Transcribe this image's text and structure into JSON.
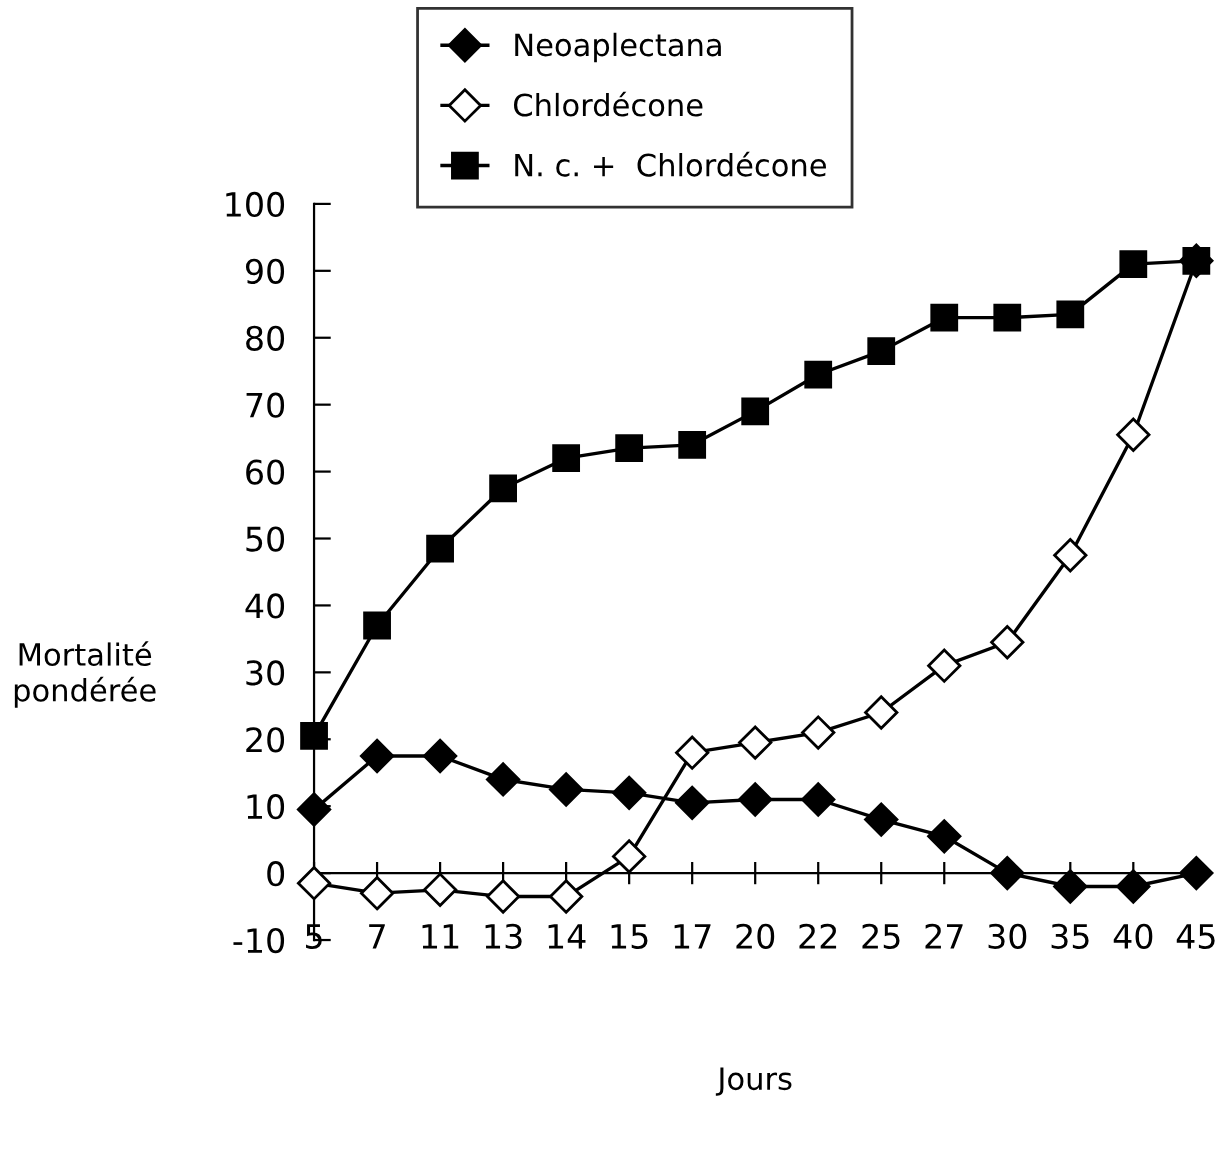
{
  "chart_data": {
    "type": "line",
    "xlabel": "Jours",
    "ylabel": "Mortalité\npondérée",
    "categories": [
      "5",
      "7",
      "11",
      "13",
      "14",
      "15",
      "17",
      "20",
      "22",
      "25",
      "27",
      "30",
      "35",
      "40",
      "45"
    ],
    "ylim": [
      -10,
      100
    ],
    "yticks": [
      -10,
      0,
      10,
      20,
      30,
      40,
      50,
      60,
      70,
      80,
      90,
      100
    ],
    "grid": false,
    "legend": "top",
    "line_style": "solid",
    "series": [
      {
        "name": "Neoaplectana",
        "color": "#000000",
        "marker": "diamond",
        "values": [
          9.5,
          17.5,
          17.5,
          14,
          12.5,
          12,
          10.5,
          11,
          11,
          8,
          5.5,
          0,
          -2,
          -2,
          0
        ]
      },
      {
        "name": "Chlordécone",
        "color": "#000000",
        "marker": "diamond",
        "values": [
          -1.5,
          -3,
          -2.5,
          -3.5,
          -3.5,
          2.5,
          18,
          19.5,
          21,
          24,
          31,
          34.5,
          47.5,
          65.5,
          91.5
        ]
      },
      {
        "name": "N. c. +  Chlordécone",
        "color": "#000000",
        "marker": "square",
        "values": [
          20.5,
          37,
          48.5,
          57.5,
          62,
          63.5,
          64,
          69,
          74.5,
          78,
          83,
          83,
          83.5,
          91,
          91.5
        ]
      }
    ]
  }
}
